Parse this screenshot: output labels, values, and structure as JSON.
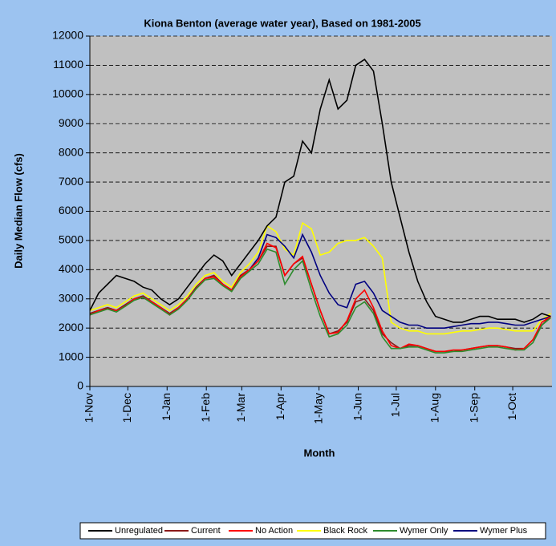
{
  "chart_data": {
    "type": "line",
    "title": "Kiona Benton (average water year), Based on 1981-2005",
    "x_label": "Month",
    "y_label": "Daily Median Flow (cfs)",
    "x": [
      0,
      7,
      14,
      21,
      28,
      35,
      42,
      49,
      56,
      63,
      70,
      77,
      84,
      91,
      98,
      105,
      112,
      119,
      126,
      133,
      140,
      147,
      154,
      161,
      168,
      175,
      182,
      189,
      196,
      203,
      210,
      217,
      224,
      231,
      238,
      245,
      252,
      259,
      266,
      273,
      280,
      287,
      294,
      301,
      308,
      315,
      322,
      329,
      336,
      343,
      350,
      357,
      364
    ],
    "xlim": [
      0,
      365
    ],
    "xticks": [
      {
        "value": 0,
        "label": "1-Nov"
      },
      {
        "value": 30,
        "label": "1-Dec"
      },
      {
        "value": 61,
        "label": "1-Jan"
      },
      {
        "value": 92,
        "label": "1-Feb"
      },
      {
        "value": 120,
        "label": "1-Mar"
      },
      {
        "value": 151,
        "label": "1-Apr"
      },
      {
        "value": 181,
        "label": "1-May"
      },
      {
        "value": 212,
        "label": "1-Jun"
      },
      {
        "value": 242,
        "label": "1-Jul"
      },
      {
        "value": 273,
        "label": "1-Aug"
      },
      {
        "value": 304,
        "label": "1-Sep"
      },
      {
        "value": 334,
        "label": "1-Oct"
      }
    ],
    "ylim": [
      0,
      12000
    ],
    "yticks": [
      0,
      1000,
      2000,
      3000,
      4000,
      5000,
      6000,
      7000,
      8000,
      9000,
      10000,
      11000,
      12000
    ],
    "grid": true,
    "series": [
      {
        "name": "Unregulated",
        "color": "#000000",
        "values": [
          2600,
          3200,
          3500,
          3800,
          3700,
          3600,
          3400,
          3300,
          3000,
          2800,
          3000,
          3400,
          3800,
          4200,
          4500,
          4300,
          3800,
          4200,
          4600,
          5000,
          5500,
          5800,
          7000,
          7200,
          8400,
          8000,
          9500,
          10500,
          9500,
          9800,
          11000,
          11200,
          10800,
          9000,
          7000,
          5800,
          4600,
          3600,
          2900,
          2400,
          2300,
          2200,
          2200,
          2300,
          2400,
          2400,
          2300,
          2300,
          2300,
          2200,
          2300,
          2500,
          2400
        ]
      },
      {
        "name": "Current",
        "color": "#8b1a1a",
        "values": [
          2500,
          2600,
          2700,
          2600,
          2800,
          3000,
          3100,
          2900,
          2700,
          2500,
          2700,
          3000,
          3400,
          3700,
          3800,
          3500,
          3300,
          3800,
          4000,
          4300,
          4800,
          4800,
          3800,
          4200,
          4400,
          3500,
          2600,
          1800,
          1900,
          2200,
          2900,
          3000,
          2600,
          1800,
          1500,
          1300,
          1400,
          1400,
          1300,
          1200,
          1200,
          1200,
          1250,
          1300,
          1350,
          1400,
          1400,
          1350,
          1300,
          1300,
          1600,
          2100,
          2400
        ]
      },
      {
        "name": "No Action",
        "color": "#ff0000",
        "values": [
          2450,
          2600,
          2650,
          2600,
          2750,
          3000,
          3050,
          2900,
          2700,
          2450,
          2700,
          3000,
          3350,
          3700,
          3750,
          3500,
          3300,
          3750,
          4000,
          4300,
          4900,
          4750,
          3800,
          4200,
          4450,
          3500,
          2600,
          1800,
          1850,
          2250,
          3000,
          3300,
          2700,
          1900,
          1400,
          1300,
          1450,
          1400,
          1300,
          1200,
          1200,
          1250,
          1250,
          1300,
          1350,
          1400,
          1400,
          1350,
          1250,
          1300,
          1600,
          2200,
          2400
        ]
      },
      {
        "name": "Black Rock",
        "color": "#ffff00",
        "values": [
          2600,
          2700,
          2800,
          2700,
          2900,
          3100,
          3200,
          3000,
          2800,
          2600,
          2800,
          3100,
          3500,
          3800,
          3900,
          3600,
          3400,
          3900,
          4200,
          4600,
          5500,
          5300,
          4700,
          4500,
          5600,
          5400,
          4500,
          4600,
          4900,
          5000,
          5000,
          5100,
          4800,
          4400,
          2200,
          2000,
          1900,
          1900,
          1800,
          1800,
          1800,
          1850,
          1900,
          1900,
          1950,
          2000,
          2000,
          1950,
          1900,
          1900,
          1900,
          2300,
          2500
        ]
      },
      {
        "name": "Wymer Only",
        "color": "#2e8b2e",
        "values": [
          2450,
          2550,
          2650,
          2550,
          2750,
          2950,
          3050,
          2850,
          2650,
          2450,
          2650,
          2950,
          3350,
          3650,
          3700,
          3450,
          3250,
          3700,
          3950,
          4200,
          4700,
          4600,
          3500,
          4000,
          4300,
          3300,
          2400,
          1700,
          1800,
          2100,
          2700,
          2900,
          2500,
          1700,
          1300,
          1300,
          1350,
          1350,
          1250,
          1150,
          1150,
          1200,
          1200,
          1250,
          1300,
          1350,
          1350,
          1300,
          1250,
          1250,
          1500,
          2100,
          2350
        ]
      },
      {
        "name": "Wymer Plus",
        "color": "#000080",
        "values": [
          2500,
          2600,
          2700,
          2600,
          2800,
          3000,
          3100,
          2900,
          2700,
          2500,
          2700,
          3000,
          3400,
          3700,
          3800,
          3500,
          3300,
          3800,
          4000,
          4400,
          5200,
          5100,
          4800,
          4400,
          5200,
          4600,
          3800,
          3200,
          2800,
          2700,
          3500,
          3600,
          3200,
          2600,
          2400,
          2200,
          2100,
          2100,
          2000,
          2000,
          2000,
          2050,
          2100,
          2150,
          2150,
          2200,
          2200,
          2150,
          2100,
          2100,
          2200,
          2300,
          2400
        ]
      }
    ]
  }
}
